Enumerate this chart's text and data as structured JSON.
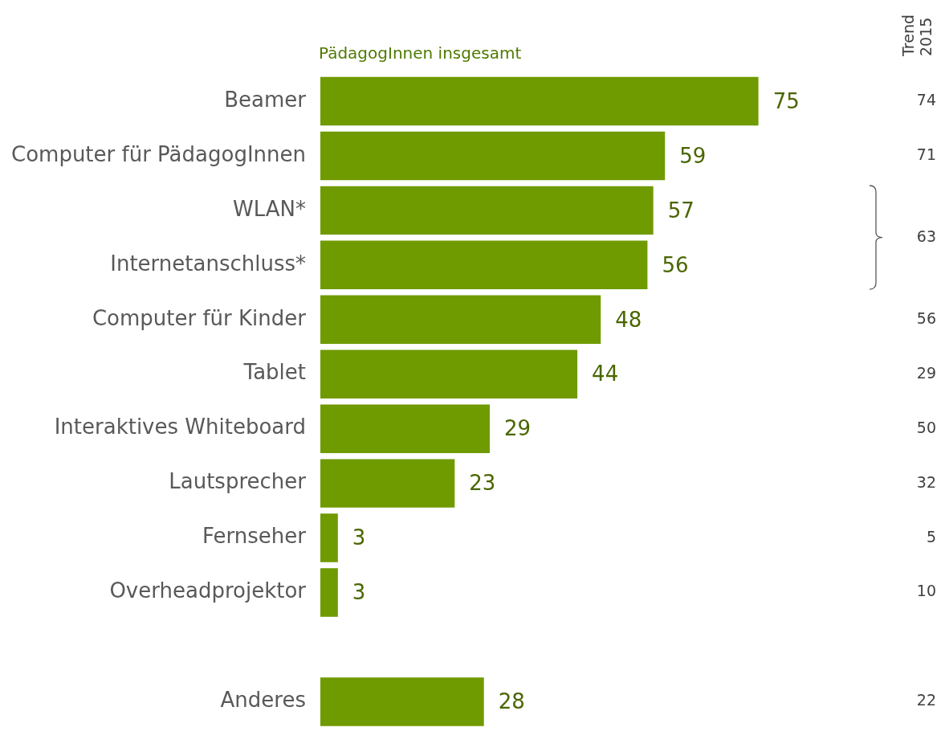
{
  "chart_data": {
    "type": "bar",
    "orientation": "horizontal",
    "categories": [
      "Beamer",
      "Computer für PädagogInnen",
      "WLAN*",
      "Internetanschluss*",
      "Computer für Kinder",
      "Tablet",
      "Interaktives Whiteboard",
      "Lautsprecher",
      "Fernseher",
      "Overheadprojektor",
      null,
      "Anderes"
    ],
    "series": [
      {
        "name": "PädagogInnen insgesamt",
        "color": "#6f9a00",
        "values": [
          75,
          59,
          57,
          56,
          48,
          44,
          29,
          23,
          3,
          3,
          null,
          28
        ]
      }
    ],
    "data_labels": true,
    "legend": false,
    "grid": false,
    "annotations": [
      "Trend 2015",
      "74",
      "71",
      "63",
      "56",
      "29",
      "50",
      "32",
      "5",
      "10",
      "22"
    ]
  }
}
